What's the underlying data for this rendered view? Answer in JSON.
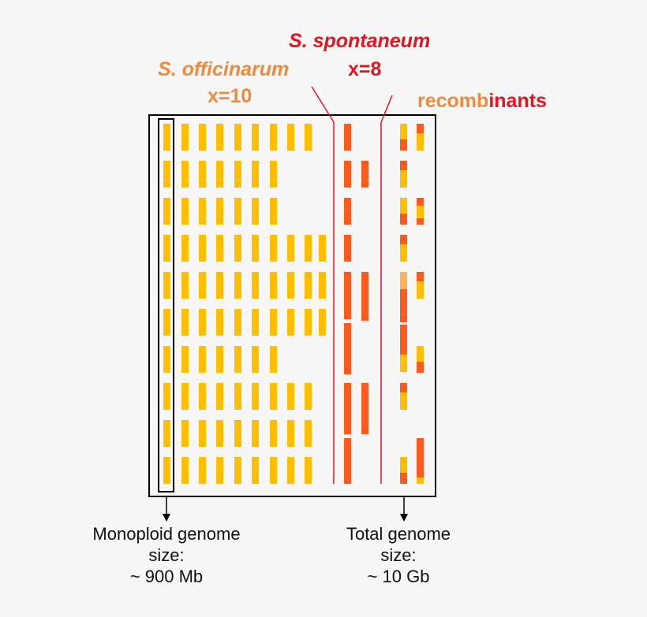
{
  "colors": {
    "officinarum": "#ffbf00",
    "spontaneum": "#ff5a1e",
    "spontaneum_label": "#e8131f",
    "officinarum_label": "#f08a3c",
    "light": "#ffb25a",
    "divider": "#e8131f",
    "frame": "#000000"
  },
  "labels": {
    "officinarum_species": "S. officinarum",
    "officinarum_x": "x=10",
    "spontaneum_species": "S. spontaneum",
    "spontaneum_x": "x=8",
    "recombinants_a": "recomb",
    "recombinants_b": "inants"
  },
  "captions": {
    "monoploid": [
      "Monoploid genome",
      "size:",
      "~ 900 Mb"
    ],
    "total": [
      "Total genome",
      "size:",
      "~ 10 Gb"
    ]
  },
  "groups": {
    "officinarum_counts": [
      9,
      7,
      7,
      10,
      10,
      10,
      7,
      9,
      9,
      9
    ],
    "spontaneum_col1": [
      1,
      1,
      1,
      1,
      1,
      1,
      1,
      1,
      1,
      1
    ],
    "spontaneum_col2": [
      0,
      1,
      0,
      0,
      1,
      0,
      0,
      1,
      0,
      0
    ]
  }
}
